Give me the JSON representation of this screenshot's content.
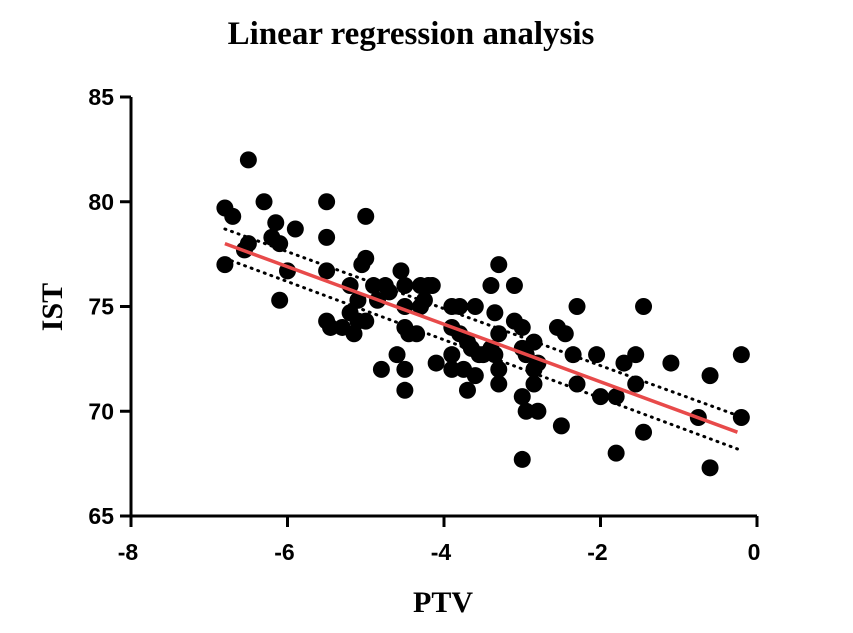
{
  "chart_data": {
    "type": "scatter",
    "title": "Linear regression analysis",
    "xlabel": "PTV",
    "ylabel": "IST",
    "xlim": [
      -8,
      0
    ],
    "ylim": [
      65,
      85
    ],
    "xticks": [
      -8,
      -6,
      -4,
      -2,
      0
    ],
    "yticks": [
      65,
      70,
      75,
      80,
      85
    ],
    "x_tick_labels": [
      "-8",
      "-6",
      "-4",
      "-2",
      "0"
    ],
    "y_tick_labels": [
      "65",
      "70",
      "75",
      "80",
      "85"
    ],
    "regression": {
      "x_start": -6.8,
      "y_start": 78.0,
      "x_end": -0.25,
      "y_end": 69.0,
      "ci_upper": {
        "x_start": -6.8,
        "y_start": 78.7,
        "x_end": -0.25,
        "y_end": 69.8
      },
      "ci_lower": {
        "x_start": -6.8,
        "y_start": 77.3,
        "x_end": -0.25,
        "y_end": 68.2
      },
      "line_color": "#e84a4a",
      "ci_color": "#000000"
    },
    "point_color": "#000000",
    "points": [
      [
        -6.8,
        79.7
      ],
      [
        -6.7,
        79.3
      ],
      [
        -6.8,
        77.0
      ],
      [
        -6.55,
        77.7
      ],
      [
        -6.5,
        78.0
      ],
      [
        -6.5,
        82.0
      ],
      [
        -6.3,
        80.0
      ],
      [
        -6.2,
        78.3
      ],
      [
        -6.15,
        79.0
      ],
      [
        -6.1,
        78.0
      ],
      [
        -5.9,
        78.7
      ],
      [
        -6.0,
        76.7
      ],
      [
        -6.1,
        75.3
      ],
      [
        -5.5,
        80.0
      ],
      [
        -5.5,
        78.3
      ],
      [
        -5.5,
        76.7
      ],
      [
        -5.5,
        74.3
      ],
      [
        -5.45,
        74.0
      ],
      [
        -5.0,
        79.3
      ],
      [
        -5.0,
        77.3
      ],
      [
        -5.05,
        77.0
      ],
      [
        -5.2,
        76.0
      ],
      [
        -5.1,
        75.3
      ],
      [
        -5.2,
        74.7
      ],
      [
        -5.3,
        74.0
      ],
      [
        -5.1,
        74.3
      ],
      [
        -5.15,
        73.7
      ],
      [
        -5.0,
        74.3
      ],
      [
        -4.9,
        76.0
      ],
      [
        -4.85,
        75.3
      ],
      [
        -4.75,
        76.0
      ],
      [
        -4.7,
        75.7
      ],
      [
        -4.55,
        76.7
      ],
      [
        -4.5,
        76.0
      ],
      [
        -4.5,
        75.0
      ],
      [
        -4.5,
        74.0
      ],
      [
        -4.45,
        73.7
      ],
      [
        -4.35,
        73.7
      ],
      [
        -4.6,
        72.7
      ],
      [
        -4.5,
        72.0
      ],
      [
        -4.5,
        71.0
      ],
      [
        -4.8,
        72.0
      ],
      [
        -4.3,
        76.0
      ],
      [
        -4.2,
        76.0
      ],
      [
        -4.25,
        75.3
      ],
      [
        -4.3,
        75.0
      ],
      [
        -4.15,
        76.0
      ],
      [
        -4.1,
        72.3
      ],
      [
        -3.9,
        75.0
      ],
      [
        -3.8,
        75.0
      ],
      [
        -3.9,
        74.0
      ],
      [
        -3.8,
        73.7
      ],
      [
        -3.7,
        73.3
      ],
      [
        -3.65,
        73.0
      ],
      [
        -3.9,
        72.7
      ],
      [
        -3.9,
        72.0
      ],
      [
        -3.75,
        72.0
      ],
      [
        -3.7,
        71.0
      ],
      [
        -3.6,
        71.7
      ],
      [
        -3.6,
        75.0
      ],
      [
        -3.55,
        72.7
      ],
      [
        -3.5,
        72.7
      ],
      [
        -3.4,
        76.0
      ],
      [
        -3.3,
        77.0
      ],
      [
        -3.35,
        74.7
      ],
      [
        -3.3,
        73.7
      ],
      [
        -3.4,
        73.0
      ],
      [
        -3.35,
        72.7
      ],
      [
        -3.3,
        72.0
      ],
      [
        -3.3,
        71.3
      ],
      [
        -3.1,
        76.0
      ],
      [
        -3.1,
        74.3
      ],
      [
        -3.0,
        74.0
      ],
      [
        -3.0,
        73.0
      ],
      [
        -2.95,
        72.7
      ],
      [
        -2.85,
        73.3
      ],
      [
        -2.85,
        72.0
      ],
      [
        -2.8,
        72.3
      ],
      [
        -2.85,
        71.3
      ],
      [
        -3.0,
        70.7
      ],
      [
        -2.95,
        70.0
      ],
      [
        -2.8,
        70.0
      ],
      [
        -3.0,
        67.7
      ],
      [
        -2.55,
        74.0
      ],
      [
        -2.5,
        69.3
      ],
      [
        -2.45,
        73.7
      ],
      [
        -2.3,
        75.0
      ],
      [
        -2.35,
        72.7
      ],
      [
        -2.3,
        71.3
      ],
      [
        -2.05,
        72.7
      ],
      [
        -2.0,
        70.7
      ],
      [
        -1.8,
        70.7
      ],
      [
        -1.8,
        68.0
      ],
      [
        -1.7,
        72.3
      ],
      [
        -1.55,
        72.7
      ],
      [
        -1.55,
        71.3
      ],
      [
        -1.45,
        75.0
      ],
      [
        -1.45,
        69.0
      ],
      [
        -1.1,
        72.3
      ],
      [
        -0.75,
        69.7
      ],
      [
        -0.6,
        71.7
      ],
      [
        -0.6,
        67.3
      ],
      [
        -0.2,
        72.7
      ],
      [
        -0.2,
        69.7
      ]
    ]
  }
}
